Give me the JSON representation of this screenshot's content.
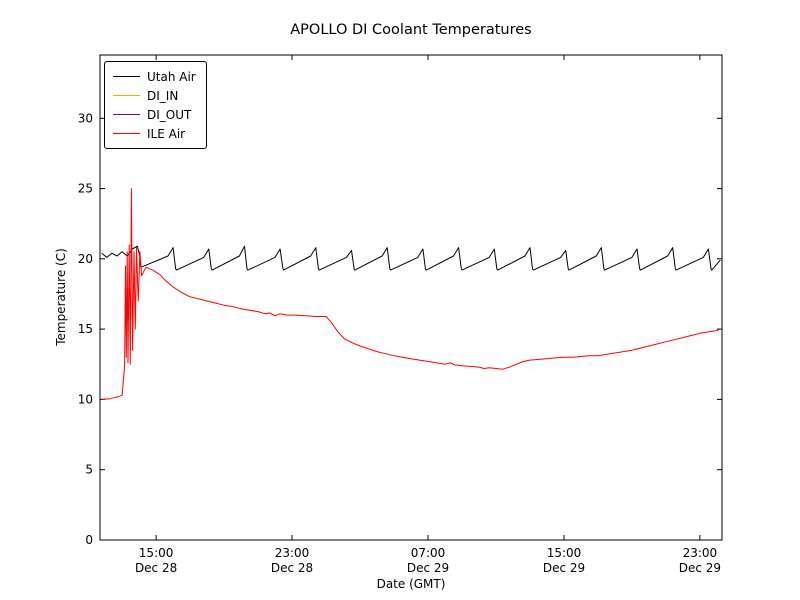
{
  "chart_data": {
    "type": "line",
    "title": "APOLLO DI Coolant Temperatures",
    "xlabel": "Date (GMT)",
    "ylabel": "Temperature (C)",
    "x_unit": "hours since Dec 28 00:00 GMT",
    "xlim": [
      11.7,
      48.3
    ],
    "ylim": [
      0,
      34.5
    ],
    "y_ticks": [
      0,
      5,
      10,
      15,
      20,
      25,
      30
    ],
    "x_ticks": [
      {
        "value": 15,
        "time": "15:00",
        "date": "Dec 28"
      },
      {
        "value": 23,
        "time": "23:00",
        "date": "Dec 28"
      },
      {
        "value": 31,
        "time": "07:00",
        "date": "Dec 29"
      },
      {
        "value": 39,
        "time": "15:00",
        "date": "Dec 29"
      },
      {
        "value": 47,
        "time": "23:00",
        "date": "Dec 29"
      }
    ],
    "legend": {
      "position": "upper left",
      "entries": [
        "Utah Air",
        "DI_IN",
        "DI_OUT",
        "ILE Air"
      ]
    },
    "grid": false,
    "series": [
      {
        "name": "Utah Air",
        "color": "#000000",
        "x": [
          11.8,
          12.1,
          12.4,
          12.7,
          13.0,
          13.3,
          13.6,
          13.9,
          14.05,
          14.1,
          15.7,
          16.0,
          16.15,
          16.2,
          17.8,
          18.1,
          18.25,
          18.3,
          19.9,
          20.2,
          20.35,
          20.4,
          22.0,
          22.3,
          22.45,
          22.5,
          24.1,
          24.4,
          24.55,
          24.6,
          26.2,
          26.5,
          26.65,
          26.7,
          28.3,
          28.6,
          28.75,
          28.8,
          30.4,
          30.7,
          30.85,
          30.9,
          32.5,
          32.8,
          32.95,
          33.0,
          34.6,
          34.9,
          35.05,
          35.1,
          36.7,
          37.0,
          37.15,
          37.2,
          38.8,
          39.1,
          39.25,
          39.3,
          40.9,
          41.2,
          41.35,
          41.4,
          43.0,
          43.3,
          43.45,
          43.5,
          45.1,
          45.4,
          45.55,
          45.6,
          47.2,
          47.5,
          47.65,
          47.7,
          48.2
        ],
        "y": [
          20.4,
          20.1,
          20.4,
          20.2,
          20.5,
          20.2,
          20.7,
          20.9,
          20.2,
          19.4,
          20.2,
          20.8,
          19.3,
          19.2,
          20.1,
          20.7,
          19.3,
          19.2,
          20.2,
          20.9,
          19.3,
          19.2,
          20.1,
          20.7,
          19.4,
          19.2,
          20.2,
          20.8,
          19.3,
          19.2,
          20.1,
          20.6,
          19.3,
          19.2,
          20.2,
          20.8,
          19.3,
          19.2,
          20.1,
          20.7,
          19.3,
          19.2,
          20.2,
          20.8,
          19.4,
          19.2,
          20.1,
          20.7,
          19.3,
          19.2,
          20.2,
          20.8,
          19.3,
          19.2,
          20.1,
          20.6,
          19.3,
          19.2,
          20.2,
          20.8,
          19.3,
          19.2,
          20.1,
          20.7,
          19.3,
          19.2,
          20.2,
          20.8,
          19.3,
          19.2,
          20.1,
          20.7,
          19.3,
          19.2,
          19.9
        ]
      },
      {
        "name": "DI_IN",
        "color": "#ffa500",
        "x": [],
        "y": []
      },
      {
        "name": "DI_OUT",
        "color": "#800080",
        "x": [],
        "y": []
      },
      {
        "name": "ILE Air",
        "color": "#ff0000",
        "x": [
          11.8,
          12.3,
          12.8,
          13.0,
          13.15,
          13.2,
          13.25,
          13.3,
          13.35,
          13.42,
          13.48,
          13.55,
          13.62,
          13.7,
          13.78,
          13.85,
          13.95,
          14.05,
          14.15,
          14.4,
          14.8,
          15.2,
          15.6,
          16.0,
          16.5,
          17.0,
          17.5,
          18.0,
          18.5,
          19.0,
          19.5,
          20.0,
          20.5,
          21.0,
          21.4,
          21.7,
          22.0,
          22.3,
          22.7,
          23.2,
          23.8,
          24.4,
          25.0,
          25.3,
          25.7,
          26.1,
          26.6,
          27.0,
          27.5,
          28.0,
          28.5,
          29.0,
          29.5,
          30.0,
          30.5,
          31.0,
          31.5,
          32.0,
          32.3,
          32.6,
          33.0,
          33.5,
          34.0,
          34.3,
          34.6,
          35.0,
          35.4,
          35.8,
          36.2,
          36.6,
          37.0,
          37.5,
          38.0,
          38.5,
          39.0,
          39.5,
          40.0,
          40.5,
          41.0,
          41.5,
          42.0,
          42.5,
          43.0,
          43.5,
          44.0,
          44.5,
          45.0,
          45.5,
          46.0,
          46.5,
          47.0,
          47.5,
          48.0,
          48.2
        ],
        "y": [
          10.0,
          10.05,
          10.2,
          10.3,
          12.4,
          19.5,
          13.0,
          20.5,
          12.6,
          21.0,
          12.5,
          25.0,
          13.5,
          20.5,
          15.0,
          20.8,
          17.0,
          20.5,
          18.8,
          19.4,
          19.2,
          18.9,
          18.4,
          18.0,
          17.6,
          17.3,
          17.15,
          17.0,
          16.85,
          16.7,
          16.6,
          16.45,
          16.35,
          16.25,
          16.1,
          16.15,
          15.95,
          16.1,
          16.0,
          16.0,
          15.95,
          15.9,
          15.9,
          15.5,
          14.8,
          14.3,
          14.0,
          13.8,
          13.6,
          13.4,
          13.25,
          13.1,
          13.0,
          12.9,
          12.8,
          12.7,
          12.6,
          12.5,
          12.6,
          12.45,
          12.4,
          12.35,
          12.3,
          12.2,
          12.25,
          12.2,
          12.15,
          12.3,
          12.5,
          12.7,
          12.8,
          12.85,
          12.9,
          12.95,
          13.0,
          13.0,
          13.05,
          13.1,
          13.1,
          13.2,
          13.3,
          13.4,
          13.5,
          13.65,
          13.8,
          13.95,
          14.1,
          14.25,
          14.4,
          14.55,
          14.7,
          14.8,
          14.9,
          15.0
        ]
      }
    ]
  }
}
